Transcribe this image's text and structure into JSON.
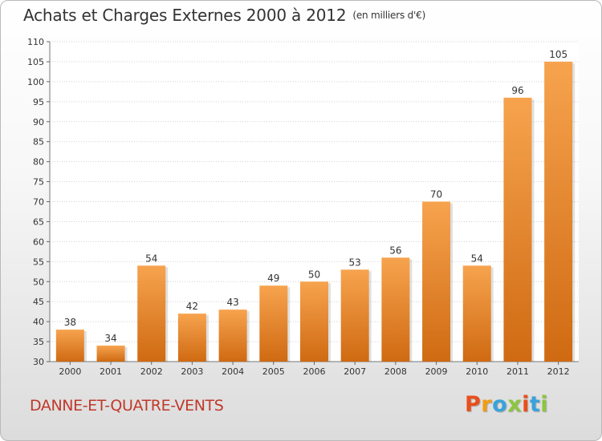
{
  "header": {
    "title": "Achats et Charges Externes 2000 à 2012",
    "unit": "(en milliers d'€)"
  },
  "footer": {
    "place": "DANNE-ET-QUATRE-VENTS",
    "logo_text": "Proxiti",
    "logo_colors": [
      "#e94e1b",
      "#f39c12",
      "#3aa2db",
      "#8cc63f",
      "#e94e1b",
      "#3aa2db",
      "#8cc63f"
    ]
  },
  "colors": {
    "bar_light": "#f7a34e",
    "bar_dark": "#cf6a12",
    "title": "#333333",
    "place": "#c0392b"
  },
  "chart_data": {
    "type": "bar",
    "categories": [
      "2000",
      "2001",
      "2002",
      "2003",
      "2004",
      "2005",
      "2006",
      "2007",
      "2008",
      "2009",
      "2010",
      "2011",
      "2012"
    ],
    "values": [
      38,
      34,
      54,
      42,
      43,
      49,
      50,
      53,
      56,
      70,
      54,
      96,
      105
    ],
    "title": "Achats et Charges Externes 2000 à 2012",
    "subtitle": "(en milliers d'€)",
    "xlabel": "",
    "ylabel": "",
    "ylim": [
      30,
      110
    ],
    "ytick_step": 5,
    "grid": true,
    "data_labels": true
  }
}
